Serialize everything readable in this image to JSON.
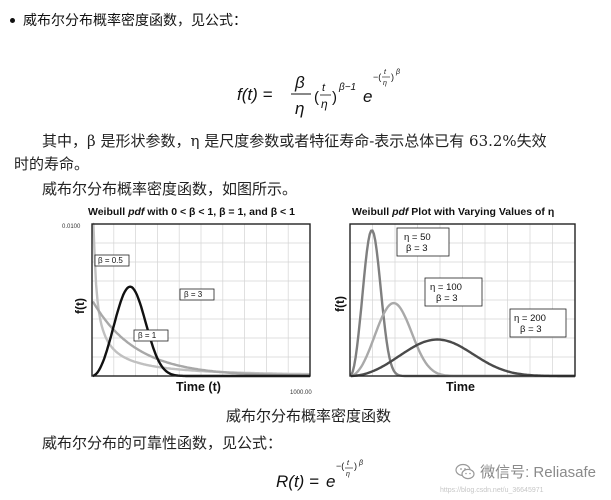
{
  "intro": {
    "text": "威布尔分布概率密度函数，见公式："
  },
  "formula_pdf": {
    "lhs": "f(t) =",
    "coef_num": "β",
    "coef_den": "η",
    "frac_num": "t",
    "frac_den": "η",
    "power": "β−1",
    "exp_base": "e",
    "exp_sign": "−(",
    "exp_num": "t",
    "exp_den": "η",
    "exp_close": ")",
    "exp_pow": "β"
  },
  "description": {
    "line1": "其中，β 是形状参数，η 是尺度参数或者特征寿命-表示总体已有 63.2%失效",
    "line2": "时的寿命。",
    "line3": "威布尔分布概率密度函数，如图所示。"
  },
  "chart_left": {
    "title_prefix": "Weibull ",
    "title_italic": "pdf",
    "title_suffix": " with 0 < β < 1, β = 1, and β < 1",
    "y_top_tick": "0.0100",
    "y_label": "f(t)",
    "x_label": "Time (t)",
    "x_right_tick": "1000.00",
    "labels": {
      "beta05": "β = 0.5",
      "beta3": "β = 3",
      "beta1": "β = 1"
    }
  },
  "chart_right": {
    "title_prefix": "Weibull ",
    "title_italic": "pdf",
    "title_suffix": " Plot with Varying Values of η",
    "y_label": "f(t)",
    "x_label": "Time",
    "labels": {
      "curve1": [
        "η = 50",
        "β = 3"
      ],
      "curve2": [
        "η = 100",
        "β = 3"
      ],
      "curve3": [
        "η = 200",
        "β = 3"
      ]
    }
  },
  "chart_data": [
    {
      "type": "line",
      "title": "Weibull pdf with 0 < β < 1, β = 1, and β < 1",
      "xlabel": "Time (t)",
      "ylabel": "f(t)",
      "xlim": [
        0,
        1000
      ],
      "ylim": [
        0,
        0.01
      ],
      "grid": true,
      "series": [
        {
          "name": "β = 0.5",
          "color": "#c0c0c0",
          "shape": 0.5,
          "scale": 200
        },
        {
          "name": "β = 1",
          "color": "#a8a8a8",
          "shape": 1,
          "scale": 200
        },
        {
          "name": "β = 3",
          "color": "#111111",
          "shape": 3,
          "scale": 200
        }
      ]
    },
    {
      "type": "line",
      "title": "Weibull pdf Plot with Varying Values of η",
      "xlabel": "Time",
      "ylabel": "f(t)",
      "grid": true,
      "series": [
        {
          "name": "η = 50, β = 3",
          "color": "#7f7f7f",
          "shape": 3,
          "scale": 50
        },
        {
          "name": "η = 100, β = 3",
          "color": "#a9a9a9",
          "shape": 3,
          "scale": 100
        },
        {
          "name": "η = 200, β = 3",
          "color": "#4a4a4a",
          "shape": 3,
          "scale": 200
        }
      ]
    }
  ],
  "caption": {
    "text": "威布尔分布概率密度函数"
  },
  "reliability": {
    "text": "威布尔分布的可靠性函数，见公式："
  },
  "formula_rel": {
    "lhs": "R(t) =",
    "base": "e",
    "sign": "−(",
    "num": "t",
    "den": "η",
    "close": ")",
    "pow": "β"
  },
  "watermark": {
    "text": "微信号: Reliasafe",
    "url": "https://blog.csdn.net/u_36645971"
  }
}
